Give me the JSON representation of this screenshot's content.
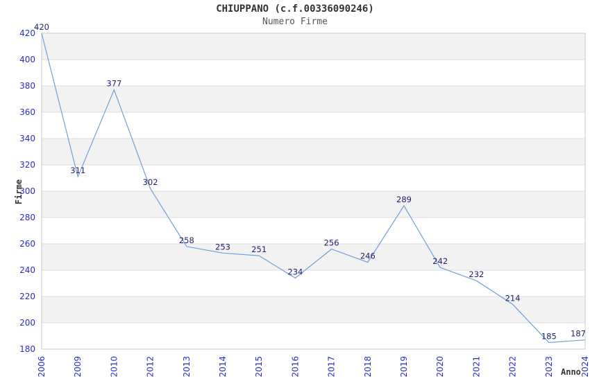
{
  "page": {
    "background": "#ffffff"
  },
  "chart_data": {
    "type": "line",
    "title": "CHIUPPANO (c.f.00336090246)",
    "subtitle": "Numero Firme",
    "xlabel": "Anno",
    "ylabel": "Firme",
    "categories": [
      "2006",
      "2009",
      "2010",
      "2012",
      "2013",
      "2014",
      "2015",
      "2016",
      "2017",
      "2018",
      "2019",
      "2020",
      "2021",
      "2022",
      "2023",
      "2024"
    ],
    "values": [
      420,
      311,
      377,
      302,
      258,
      253,
      251,
      234,
      256,
      246,
      289,
      242,
      232,
      214,
      185,
      187
    ],
    "ylim": [
      180,
      420
    ],
    "ytick_step": 20,
    "grid": "horizontal",
    "background_bands": "alternating-gray-white-from-top",
    "legend": "none",
    "x_tick_rotation": -90,
    "colors": {
      "line": "#6f9fd8",
      "tick_label": "#2a2ac8",
      "data_label": "#20206e",
      "band": "#f2f2f2",
      "grid": "#dddddd",
      "axis_border": "#c8c8c8",
      "title": "#333333",
      "subtitle": "#555555",
      "axis_name": "#333333"
    }
  }
}
